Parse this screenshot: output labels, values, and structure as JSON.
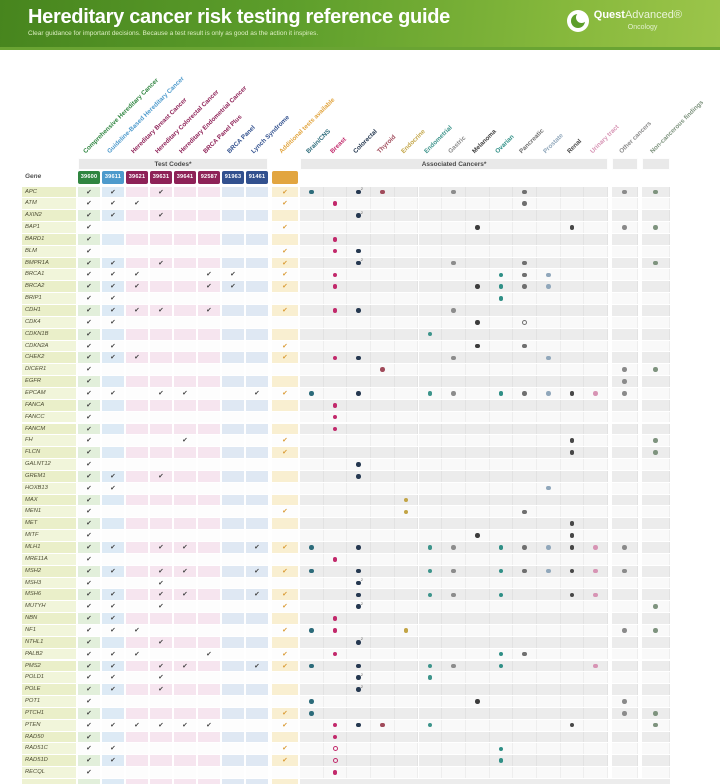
{
  "banner": {
    "title": "Hereditary cancer risk testing reference guide",
    "subtitle": "Clear guidance for important decisions. Because a test result is only as good as the action it inspires.",
    "brand": {
      "name1": "Quest",
      "name2": "Advanced®",
      "sub": "Oncology"
    }
  },
  "table": {
    "gene_header": "Gene",
    "test_codes_header": "Test Codes*",
    "associated_header": "Associated Cancers*",
    "tests": [
      {
        "label": "Comprehensive Hereditary Cancer",
        "code": "39600",
        "color": "#2f8540",
        "tint": "#e2efdb"
      },
      {
        "label": "Guideline-Based Hereditary Cancer",
        "code": "39611",
        "color": "#4d9acc",
        "tint": "#ddeaf5"
      },
      {
        "label": "Hereditary Breast Cancer",
        "code": "39621",
        "color": "#8e2157",
        "tint": "#f6e5ef"
      },
      {
        "label": "Hereditary Colorectal Cancer",
        "code": "39631",
        "color": "#8e2157",
        "tint": "#f6e5ef"
      },
      {
        "label": "Hereditary Endometrial Cancer",
        "code": "39641",
        "color": "#8e2157",
        "tint": "#f6e5ef"
      },
      {
        "label": "BRCA Panel Plus",
        "code": "92587",
        "color": "#8e2157",
        "tint": "#f6e5ef"
      },
      {
        "label": "BRCA Panel",
        "code": "91963",
        "color": "#31508e",
        "tint": "#dfe8f3"
      },
      {
        "label": "Lynch Syndrome",
        "code": "91461",
        "color": "#31508e",
        "tint": "#dfe8f3"
      }
    ],
    "additional": {
      "label": "Additional tests available",
      "color": "#e2a53f",
      "tint": "#f9efd1",
      "check_color": "#d99a33"
    },
    "cancers": [
      {
        "key": "brain",
        "label": "Brain/CNS",
        "color": "#2c6b7a"
      },
      {
        "key": "breast",
        "label": "Breast",
        "color": "#c2296b"
      },
      {
        "key": "colorectal",
        "label": "Colorectal",
        "color": "#253850"
      },
      {
        "key": "thyroid",
        "label": "Thyroid",
        "color": "#a04a5a"
      },
      {
        "key": "endocrine",
        "label": "Endocrine",
        "color": "#c2a445"
      },
      {
        "key": "endometrial",
        "label": "Endometrial",
        "color": "#3d948b"
      },
      {
        "key": "gastric",
        "label": "Gastric",
        "color": "#8c8c8c"
      },
      {
        "key": "melanoma",
        "label": "Melanoma",
        "color": "#3c3c3c"
      },
      {
        "key": "ovarian",
        "label": "Ovarian",
        "color": "#2f8f86"
      },
      {
        "key": "pancreatic",
        "label": "Pancreatic",
        "color": "#6f6f6f"
      },
      {
        "key": "prostate",
        "label": "Prostate",
        "color": "#90a7bb"
      },
      {
        "key": "renal",
        "label": "Renal",
        "color": "#474747"
      },
      {
        "key": "urinary",
        "label": "Urinary tract",
        "color": "#d794b4"
      },
      {
        "key": "other",
        "label": "Other cancers",
        "color": "#8a8a8a"
      },
      {
        "key": "noncancer",
        "label": "Non-cancerous findings",
        "color": "#7e937e"
      }
    ],
    "rows": [
      {
        "gene": "APC",
        "tests": [
          1,
          1,
          0,
          1,
          0,
          0,
          0,
          0,
          1
        ],
        "dots": {
          "brain": "f",
          "colorectal": "s",
          "thyroid": "f",
          "gastric": "f",
          "pancreatic": "f",
          "other": "f",
          "noncancer": "f"
        }
      },
      {
        "gene": "ATM",
        "tests": [
          1,
          1,
          1,
          0,
          0,
          0,
          0,
          0,
          1
        ],
        "dots": {
          "breast": "f",
          "pancreatic": "f"
        }
      },
      {
        "gene": "AXIN2",
        "tests": [
          1,
          1,
          0,
          1,
          0,
          0,
          0,
          0,
          0
        ],
        "dots": {
          "colorectal": "s"
        }
      },
      {
        "gene": "BAP1",
        "tests": [
          1,
          0,
          0,
          0,
          0,
          0,
          0,
          0,
          1
        ],
        "dots": {
          "melanoma": "f",
          "renal": "f",
          "other": "f",
          "noncancer": "f"
        }
      },
      {
        "gene": "BARD1",
        "tests": [
          1,
          0,
          0,
          0,
          0,
          0,
          0,
          0,
          0
        ],
        "dots": {
          "breast": "f"
        }
      },
      {
        "gene": "BLM",
        "tests": [
          1,
          0,
          0,
          0,
          0,
          0,
          0,
          0,
          1
        ],
        "dots": {
          "breast": "f",
          "colorectal": "f"
        }
      },
      {
        "gene": "BMPR1A",
        "tests": [
          1,
          1,
          0,
          1,
          0,
          0,
          0,
          0,
          1
        ],
        "dots": {
          "colorectal": "s",
          "gastric": "f",
          "pancreatic": "f",
          "noncancer": "f"
        }
      },
      {
        "gene": "BRCA1",
        "tests": [
          1,
          1,
          1,
          0,
          0,
          1,
          1,
          0,
          1
        ],
        "dots": {
          "breast": "f",
          "ovarian": "f",
          "pancreatic": "f",
          "prostate": "f"
        }
      },
      {
        "gene": "BRCA2",
        "tests": [
          1,
          1,
          1,
          0,
          0,
          1,
          1,
          0,
          1
        ],
        "dots": {
          "breast": "f",
          "melanoma": "f",
          "ovarian": "f",
          "pancreatic": "f",
          "prostate": "f"
        }
      },
      {
        "gene": "BRIP1",
        "tests": [
          1,
          1,
          0,
          0,
          0,
          0,
          0,
          0,
          0
        ],
        "dots": {
          "ovarian": "f"
        }
      },
      {
        "gene": "CDH1",
        "tests": [
          1,
          1,
          1,
          1,
          0,
          1,
          0,
          0,
          1
        ],
        "dots": {
          "breast": "f",
          "colorectal": "f",
          "gastric": "f"
        }
      },
      {
        "gene": "CDK4",
        "tests": [
          1,
          1,
          0,
          0,
          0,
          0,
          0,
          0,
          0
        ],
        "dots": {
          "melanoma": "f",
          "pancreatic": "o"
        }
      },
      {
        "gene": "CDKN1B",
        "tests": [
          1,
          0,
          0,
          0,
          0,
          0,
          0,
          0,
          0
        ],
        "dots": {
          "endometrial": "f"
        }
      },
      {
        "gene": "CDKN2A",
        "tests": [
          1,
          1,
          0,
          0,
          0,
          0,
          0,
          0,
          1
        ],
        "dots": {
          "melanoma": "f",
          "pancreatic": "f"
        }
      },
      {
        "gene": "CHEK2",
        "tests": [
          1,
          1,
          1,
          0,
          0,
          0,
          0,
          0,
          1
        ],
        "dots": {
          "breast": "f",
          "colorectal": "f",
          "gastric": "f",
          "prostate": "f"
        }
      },
      {
        "gene": "DICER1",
        "tests": [
          1,
          0,
          0,
          0,
          0,
          0,
          0,
          0,
          0
        ],
        "dots": {
          "thyroid": "f",
          "other": "f",
          "noncancer": "f"
        }
      },
      {
        "gene": "EGFR",
        "tests": [
          1,
          0,
          0,
          0,
          0,
          0,
          0,
          0,
          0
        ],
        "dots": {
          "other": "f"
        }
      },
      {
        "gene": "EPCAM",
        "tests": [
          1,
          1,
          0,
          1,
          1,
          0,
          0,
          1,
          1
        ],
        "dots": {
          "brain": "f",
          "colorectal": "f",
          "endometrial": "f",
          "gastric": "f",
          "ovarian": "f",
          "pancreatic": "f",
          "prostate": "f",
          "renal": "f",
          "urinary": "f",
          "other": "f"
        }
      },
      {
        "gene": "FANCA",
        "tests": [
          1,
          0,
          0,
          0,
          0,
          0,
          0,
          0,
          0
        ],
        "dots": {
          "breast": "f"
        }
      },
      {
        "gene": "FANCC",
        "tests": [
          1,
          0,
          0,
          0,
          0,
          0,
          0,
          0,
          0
        ],
        "dots": {
          "breast": "f"
        }
      },
      {
        "gene": "FANCM",
        "tests": [
          1,
          0,
          0,
          0,
          0,
          0,
          0,
          0,
          0
        ],
        "dots": {
          "breast": "f"
        }
      },
      {
        "gene": "FH",
        "tests": [
          1,
          0,
          0,
          0,
          1,
          0,
          0,
          0,
          1
        ],
        "dots": {
          "renal": "f",
          "noncancer": "f"
        }
      },
      {
        "gene": "FLCN",
        "tests": [
          1,
          0,
          0,
          0,
          0,
          0,
          0,
          0,
          1
        ],
        "dots": {
          "renal": "f",
          "noncancer": "f"
        }
      },
      {
        "gene": "GALNT12",
        "tests": [
          1,
          0,
          0,
          0,
          0,
          0,
          0,
          0,
          0
        ],
        "dots": {
          "colorectal": "f"
        }
      },
      {
        "gene": "GREM1",
        "tests": [
          1,
          1,
          0,
          1,
          0,
          0,
          0,
          0,
          0
        ],
        "dots": {
          "colorectal": "f"
        }
      },
      {
        "gene": "HOXB13",
        "tests": [
          1,
          1,
          0,
          0,
          0,
          0,
          0,
          0,
          0
        ],
        "dots": {
          "prostate": "f"
        }
      },
      {
        "gene": "MAX",
        "tests": [
          1,
          0,
          0,
          0,
          0,
          0,
          0,
          0,
          0
        ],
        "dots": {
          "endocrine": "f"
        }
      },
      {
        "gene": "MEN1",
        "tests": [
          1,
          0,
          0,
          0,
          0,
          0,
          0,
          0,
          1
        ],
        "dots": {
          "endocrine": "f",
          "pancreatic": "f"
        }
      },
      {
        "gene": "MET",
        "tests": [
          1,
          0,
          0,
          0,
          0,
          0,
          0,
          0,
          0
        ],
        "dots": {
          "renal": "f"
        }
      },
      {
        "gene": "MITF",
        "tests": [
          1,
          0,
          0,
          0,
          0,
          0,
          0,
          0,
          0
        ],
        "dots": {
          "melanoma": "f",
          "renal": "f"
        }
      },
      {
        "gene": "MLH1",
        "tests": [
          1,
          1,
          0,
          1,
          1,
          0,
          0,
          1,
          1
        ],
        "dots": {
          "brain": "f",
          "colorectal": "f",
          "endometrial": "f",
          "gastric": "f",
          "ovarian": "f",
          "pancreatic": "f",
          "prostate": "f",
          "renal": "f",
          "urinary": "f",
          "other": "f"
        }
      },
      {
        "gene": "MRE11A",
        "tests": [
          1,
          0,
          0,
          0,
          0,
          0,
          0,
          0,
          0
        ],
        "dots": {
          "breast": "f"
        }
      },
      {
        "gene": "MSH2",
        "tests": [
          1,
          1,
          0,
          1,
          1,
          0,
          0,
          1,
          1
        ],
        "dots": {
          "brain": "f",
          "colorectal": "f",
          "endometrial": "f",
          "gastric": "f",
          "ovarian": "f",
          "pancreatic": "f",
          "prostate": "f",
          "renal": "f",
          "urinary": "f",
          "other": "f"
        }
      },
      {
        "gene": "MSH3",
        "tests": [
          1,
          0,
          0,
          1,
          0,
          0,
          0,
          0,
          0
        ],
        "dots": {
          "colorectal": "s"
        }
      },
      {
        "gene": "MSH6",
        "tests": [
          1,
          1,
          0,
          1,
          1,
          0,
          0,
          1,
          1
        ],
        "dots": {
          "colorectal": "f",
          "endometrial": "f",
          "gastric": "f",
          "ovarian": "f",
          "renal": "f",
          "urinary": "f"
        }
      },
      {
        "gene": "MUTYH",
        "tests": [
          1,
          1,
          0,
          1,
          0,
          0,
          0,
          0,
          1
        ],
        "dots": {
          "colorectal": "s",
          "noncancer": "f"
        }
      },
      {
        "gene": "NBN",
        "tests": [
          1,
          1,
          0,
          0,
          0,
          0,
          0,
          0,
          0
        ],
        "dots": {
          "breast": "f"
        }
      },
      {
        "gene": "NF1",
        "tests": [
          1,
          1,
          1,
          0,
          0,
          0,
          0,
          0,
          1
        ],
        "dots": {
          "brain": "f",
          "breast": "f",
          "endocrine": "f",
          "other": "f",
          "noncancer": "f"
        }
      },
      {
        "gene": "NTHL1",
        "tests": [
          1,
          0,
          0,
          1,
          0,
          0,
          0,
          0,
          0
        ],
        "dots": {
          "colorectal": "s"
        }
      },
      {
        "gene": "PALB2",
        "tests": [
          1,
          1,
          1,
          0,
          0,
          1,
          0,
          0,
          1
        ],
        "dots": {
          "breast": "f",
          "ovarian": "f",
          "pancreatic": "f"
        }
      },
      {
        "gene": "PMS2",
        "tests": [
          1,
          1,
          0,
          1,
          1,
          0,
          0,
          1,
          1
        ],
        "dots": {
          "brain": "f",
          "colorectal": "f",
          "endometrial": "f",
          "gastric": "f",
          "ovarian": "f",
          "urinary": "f"
        }
      },
      {
        "gene": "POLD1",
        "tests": [
          1,
          1,
          0,
          1,
          0,
          0,
          0,
          0,
          0
        ],
        "dots": {
          "colorectal": "s",
          "endometrial": "f"
        }
      },
      {
        "gene": "POLE",
        "tests": [
          1,
          1,
          0,
          1,
          0,
          0,
          0,
          0,
          0
        ],
        "dots": {
          "colorectal": "s"
        }
      },
      {
        "gene": "POT1",
        "tests": [
          1,
          0,
          0,
          0,
          0,
          0,
          0,
          0,
          0
        ],
        "dots": {
          "brain": "f",
          "melanoma": "f",
          "other": "f"
        }
      },
      {
        "gene": "PTCH1",
        "tests": [
          1,
          0,
          0,
          0,
          0,
          0,
          0,
          0,
          1
        ],
        "dots": {
          "brain": "f",
          "other": "f",
          "noncancer": "f"
        }
      },
      {
        "gene": "PTEN",
        "tests": [
          1,
          1,
          1,
          1,
          1,
          1,
          0,
          0,
          1
        ],
        "dots": {
          "breast": "f",
          "colorectal": "f",
          "thyroid": "f",
          "endometrial": "f",
          "renal": "f",
          "noncancer": "f"
        }
      },
      {
        "gene": "RAD50",
        "tests": [
          1,
          0,
          0,
          0,
          0,
          0,
          0,
          0,
          0
        ],
        "dots": {
          "breast": "f"
        }
      },
      {
        "gene": "RAD51C",
        "tests": [
          1,
          1,
          0,
          0,
          0,
          0,
          0,
          0,
          1
        ],
        "dots": {
          "breast": "o",
          "ovarian": "f"
        }
      },
      {
        "gene": "RAD51D",
        "tests": [
          1,
          1,
          0,
          0,
          0,
          0,
          0,
          0,
          1
        ],
        "dots": {
          "breast": "o",
          "ovarian": "f"
        }
      },
      {
        "gene": "RECQL",
        "tests": [
          1,
          0,
          0,
          0,
          0,
          0,
          0,
          0,
          0
        ],
        "dots": {
          "breast": "f"
        }
      }
    ]
  }
}
